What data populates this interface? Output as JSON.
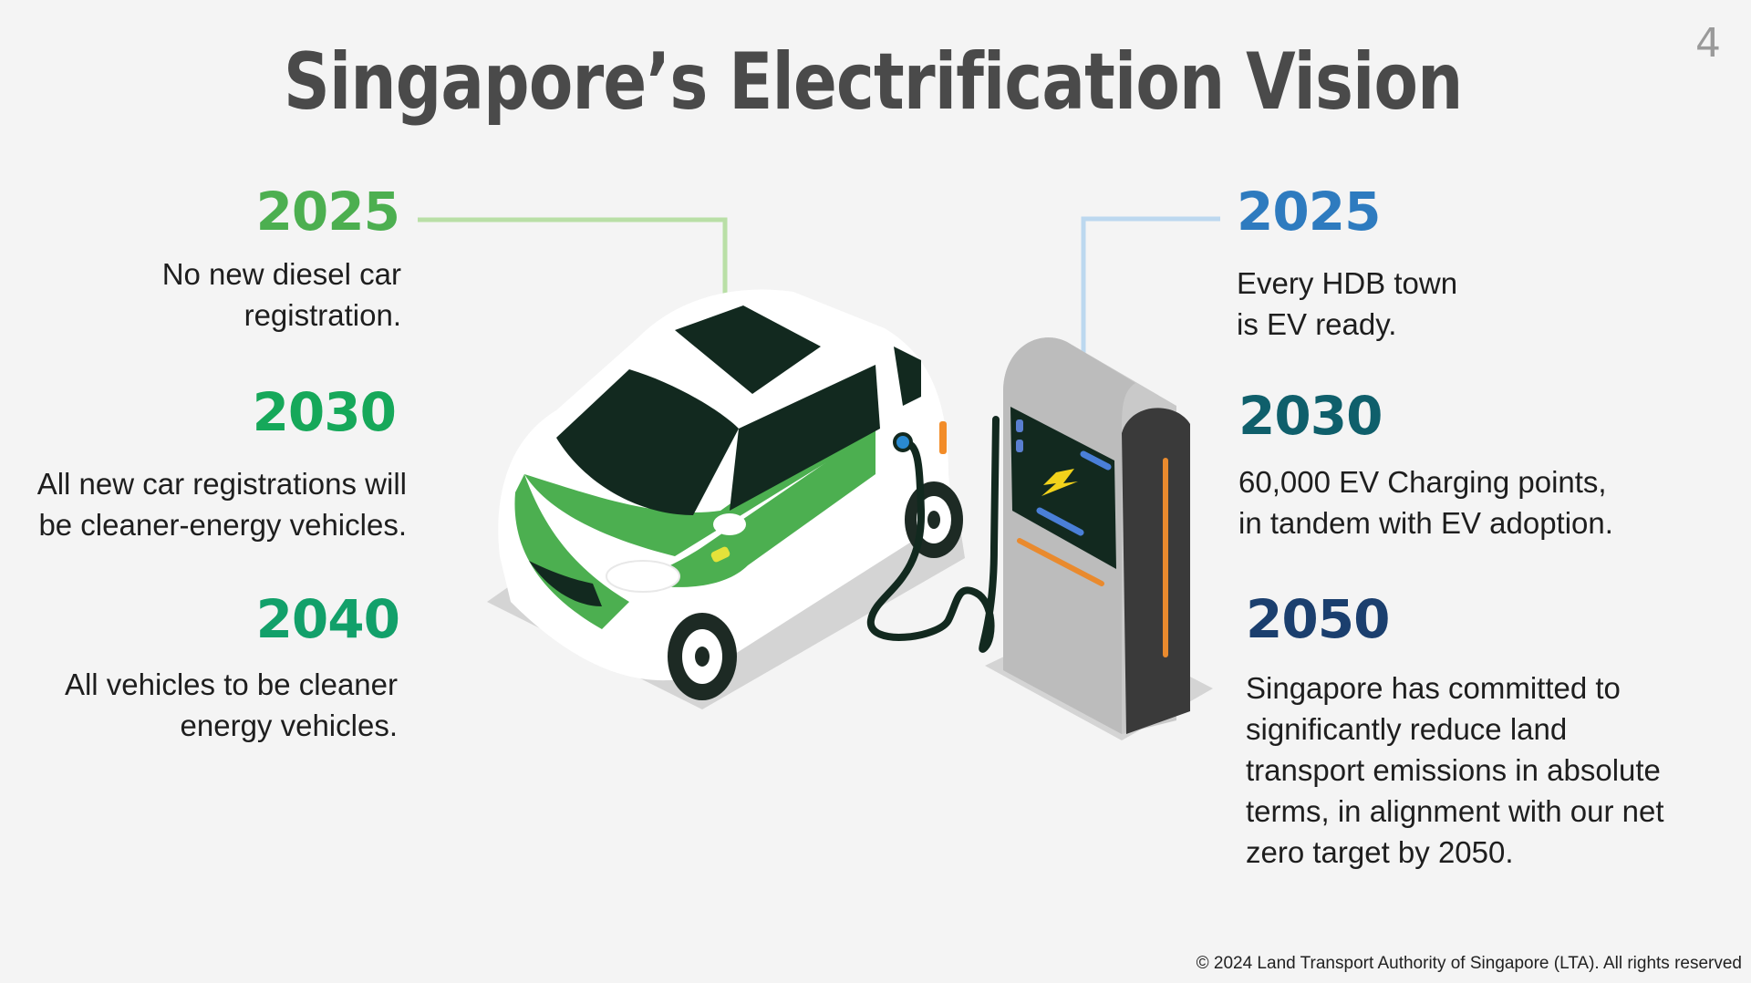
{
  "slide": {
    "title": "Singapore’s Electrification Vision",
    "page_number": "4",
    "footer": "© 2024 Land Transport Authority of Singapore (LTA). All rights reserved"
  },
  "left_milestones": [
    {
      "year": "2025",
      "text": "No new diesel car\nregistration.",
      "color": "#4caf50"
    },
    {
      "year": "2030",
      "text": "All new car registrations will\nbe cleaner-energy vehicles.",
      "color": "#16a85a"
    },
    {
      "year": "2040",
      "text": "All vehicles to be cleaner\nenergy vehicles.",
      "color": "#12a06a"
    }
  ],
  "right_milestones": [
    {
      "year": "2025",
      "text": "Every HDB town\nis EV ready.",
      "color": "#2e7bbf"
    },
    {
      "year": "2030",
      "text": "60,000 EV Charging points,\nin tandem with EV adoption.",
      "color": "#0f5f6b"
    },
    {
      "year": "2050",
      "text": "Singapore has committed to\nsignificantly reduce land\ntransport emissions in absolute\nterms, in alignment with our net\nzero target by 2050.",
      "color": "#1b3f6e"
    }
  ],
  "illustration": {
    "car_icon": "electric-car-icon",
    "charger_icon": "ev-charging-station-icon",
    "bolt_icon": "lightning-bolt-icon"
  }
}
